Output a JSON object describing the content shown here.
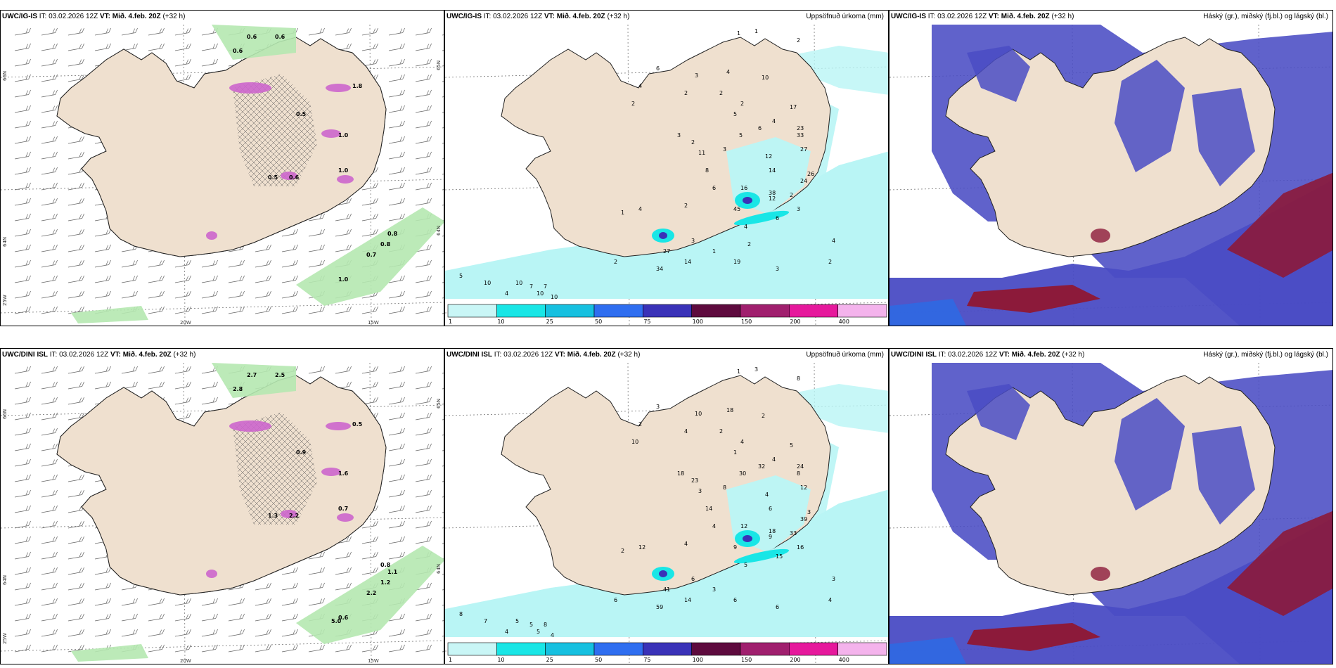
{
  "panels": [
    {
      "model": "UWC/IG-IS",
      "it_label": "IT:",
      "it": "03.02.2026 12Z",
      "vt_label": "VT:",
      "vt": "Mið. 4.feb. 20Z",
      "lead": "(+32 h)",
      "right_title": "",
      "kind": "wind",
      "values": [
        "0.6",
        "0.6",
        "0.6",
        "0.8",
        "0.8",
        "0.7",
        "1.0",
        "1.8",
        "0.5",
        "1.0",
        "0.5",
        "0.6",
        "1.0"
      ],
      "axis_labels": [
        "20W",
        "15W",
        "66N",
        "64N",
        "25W",
        "65N",
        "64N"
      ]
    },
    {
      "model": "UWC/IG-IS",
      "it_label": "IT:",
      "it": "03.02.2026 12Z",
      "vt_label": "VT:",
      "vt": "Mið. 4.feb. 20Z",
      "lead": "(+32 h)",
      "right_title": "Uppsöfnuð úrkoma (mm)",
      "kind": "precip",
      "values": [
        "1",
        "1",
        "2",
        "6",
        "4",
        "2",
        "3",
        "4",
        "10",
        "5",
        "17",
        "4",
        "2",
        "2",
        "2",
        "3",
        "2",
        "5",
        "6",
        "23",
        "33",
        "11",
        "3",
        "12",
        "27",
        "8",
        "14",
        "26",
        "24",
        "38",
        "2",
        "4",
        "1",
        "2",
        "6",
        "16",
        "45",
        "12",
        "3",
        "6",
        "4",
        "34",
        "27",
        "14",
        "19",
        "3",
        "2",
        "4",
        "5",
        "10",
        "7",
        "10",
        "10",
        "7",
        "4",
        "10",
        "2",
        "3",
        "1",
        "2"
      ],
      "colorbar": [
        "1",
        "10",
        "25",
        "50",
        "75",
        "100",
        "150",
        "200",
        "400"
      ],
      "colorbar_colors": [
        "#c9f6f6",
        "#19e6e6",
        "#16c0e0",
        "#2f6ef0",
        "#3a32b8",
        "#5e0a3e",
        "#a01f6e",
        "#e6189c",
        "#f4b3ec"
      ]
    },
    {
      "model": "UWC/IG-IS",
      "it_label": "IT:",
      "it": "03.02.2026 12Z",
      "vt_label": "VT:",
      "vt": "Mið. 4.feb. 20Z",
      "lead": "(+32 h)",
      "right_title": "Háský (gr.), miðský (fj.bl.) og lágský (bl.)",
      "kind": "cloud"
    },
    {
      "model": "UWC/DINI ISL",
      "it_label": "IT:",
      "it": "03.02.2026 12Z",
      "vt_label": "VT:",
      "vt": "Mið. 4.feb. 20Z",
      "lead": "(+32 h)",
      "right_title": "",
      "kind": "wind",
      "values": [
        "2.7",
        "2.5",
        "2.8",
        "1.1",
        "1.2",
        "2.2",
        "0.6",
        "0.5",
        "0.9",
        "1.6",
        "1.3",
        "2.2",
        "0.7",
        "0.8",
        "5.0"
      ],
      "axis_labels": [
        "20W",
        "15W",
        "66N",
        "64N",
        "25W",
        "65N",
        "64N"
      ]
    },
    {
      "model": "UWC/DINI ISL",
      "it_label": "IT:",
      "it": "03.02.2026 12Z",
      "vt_label": "VT:",
      "vt": "Mið. 4.feb. 20Z",
      "lead": "(+32 h)",
      "right_title": "Uppsöfnuð úrkoma (mm)",
      "kind": "precip",
      "values": [
        "1",
        "3",
        "8",
        "3",
        "2",
        "10",
        "10",
        "18",
        "2",
        "1",
        "5",
        "4",
        "4",
        "2",
        "4",
        "18",
        "23",
        "30",
        "32",
        "24",
        "8",
        "3",
        "8",
        "4",
        "12",
        "14",
        "6",
        "3",
        "39",
        "18",
        "33",
        "12",
        "2",
        "4",
        "4",
        "12",
        "9",
        "9",
        "16",
        "15",
        "5",
        "59",
        "41",
        "14",
        "6",
        "6",
        "4",
        "3",
        "8",
        "5",
        "5",
        "5",
        "4",
        "8",
        "4",
        "7",
        "6",
        "6",
        "3"
      ],
      "colorbar": [
        "1",
        "10",
        "25",
        "50",
        "75",
        "100",
        "150",
        "200",
        "400"
      ],
      "colorbar_colors": [
        "#c9f6f6",
        "#19e6e6",
        "#16c0e0",
        "#2f6ef0",
        "#3a32b8",
        "#5e0a3e",
        "#a01f6e",
        "#e6189c",
        "#f4b3ec"
      ]
    },
    {
      "model": "UWC/DINI ISL",
      "it_label": "IT:",
      "it": "03.02.2026 12Z",
      "vt_label": "VT:",
      "vt": "Mið. 4.feb. 20Z",
      "lead": "(+32 h)",
      "right_title": "Háský (gr.), miðský (fj.bl.) og lágský (bl.)",
      "kind": "cloud"
    }
  ],
  "colors": {
    "land": "#efe0cf",
    "coast": "#222222",
    "precip_light": "#b9f5f5",
    "precip_mid": "#19e6e6",
    "cloud_mid": "#4a4cc4",
    "cloud_low": "#2b6be6",
    "cloud_high": "#8c1a3a",
    "wind_green": "#b5e8b0",
    "wind_purple": "#cc66cc"
  }
}
